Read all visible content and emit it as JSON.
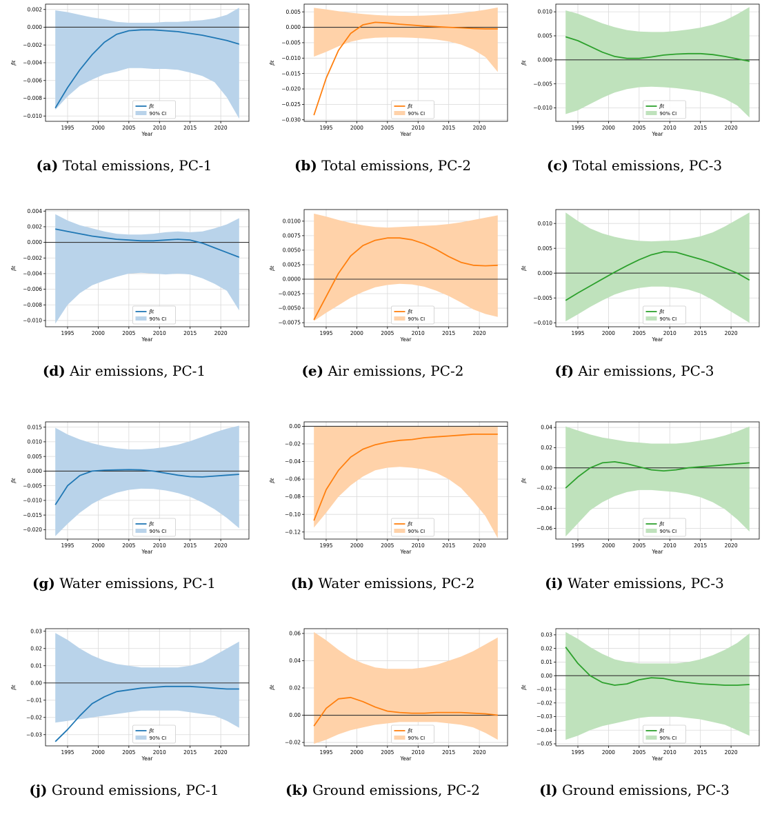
{
  "colors": {
    "blue": "#1f77b4",
    "blue_fill": "#b9d3ea",
    "orange": "#ff7f0e",
    "orange_fill": "#ffd2a9",
    "green": "#2ca02c",
    "green_fill": "#bfe2bc",
    "zero_line": "#333333",
    "grid": "#d9d9d9"
  },
  "shared": {
    "xlabel": "Year",
    "ylabel": "β̂t",
    "legend_line": "β̂t",
    "legend_fill": "90% CI",
    "legend_position": "lower-center",
    "xticks": [
      1995,
      2000,
      2005,
      2010,
      2015,
      2020
    ],
    "xlim": [
      1991.4,
      2024.6
    ],
    "grid": true
  },
  "chart_data": [
    {
      "id": "a",
      "type": "line",
      "color": "blue",
      "caption_letter": "(a)",
      "caption_text": "Total emissions, PC-1",
      "ylim": [
        -0.0106,
        0.0026
      ],
      "yticks": [
        0.002,
        0.0,
        -0.002,
        -0.004,
        -0.006,
        -0.008,
        -0.01
      ],
      "ytick_labels": [
        "0.002",
        "0.000",
        "−0.002",
        "−0.004",
        "−0.006",
        "−0.008",
        "−0.010"
      ],
      "x": [
        1993,
        1995,
        1997,
        1999,
        2001,
        2003,
        2005,
        2007,
        2009,
        2011,
        2013,
        2015,
        2017,
        2019,
        2021,
        2023
      ],
      "y": [
        -0.0091,
        -0.0068,
        -0.0048,
        -0.0031,
        -0.0017,
        -0.0008,
        -0.0004,
        -0.0003,
        -0.0003,
        -0.0004,
        -0.0005,
        -0.0007,
        -0.0009,
        -0.0012,
        -0.0015,
        -0.0019
      ],
      "upper": [
        0.0019,
        0.0017,
        0.0014,
        0.0011,
        0.0009,
        0.0006,
        0.0005,
        0.0005,
        0.0005,
        0.0006,
        0.0006,
        0.0007,
        0.0008,
        0.001,
        0.0014,
        0.0022
      ],
      "lower": [
        -0.0093,
        -0.0078,
        -0.0066,
        -0.0059,
        -0.0053,
        -0.005,
        -0.0046,
        -0.0046,
        -0.0047,
        -0.0047,
        -0.0048,
        -0.0051,
        -0.0055,
        -0.0062,
        -0.0079,
        -0.0103
      ]
    },
    {
      "id": "b",
      "type": "line",
      "color": "orange",
      "caption_letter": "(b)",
      "caption_text": "Total emissions, PC-2",
      "ylim": [
        -0.0305,
        0.0075
      ],
      "yticks": [
        0.005,
        0.0,
        -0.005,
        -0.01,
        -0.015,
        -0.02,
        -0.025,
        -0.03
      ],
      "ytick_labels": [
        "0.005",
        "0.000",
        "−0.005",
        "−0.010",
        "−0.015",
        "−0.020",
        "−0.025",
        "−0.030"
      ],
      "x": [
        1993,
        1995,
        1997,
        1999,
        2001,
        2003,
        2005,
        2007,
        2009,
        2011,
        2013,
        2015,
        2017,
        2019,
        2021,
        2023
      ],
      "y": [
        -0.0285,
        -0.0165,
        -0.0075,
        -0.002,
        0.0008,
        0.0016,
        0.0014,
        0.001,
        0.0007,
        0.0004,
        0.0002,
        0.0,
        -0.0002,
        -0.0004,
        -0.0005,
        -0.0005
      ],
      "upper": [
        0.0063,
        0.0058,
        0.0052,
        0.0047,
        0.0043,
        0.004,
        0.0038,
        0.0037,
        0.0037,
        0.0038,
        0.004,
        0.0042,
        0.0046,
        0.0051,
        0.0057,
        0.0064
      ],
      "lower": [
        -0.0095,
        -0.008,
        -0.0062,
        -0.0047,
        -0.0038,
        -0.0034,
        -0.0033,
        -0.0033,
        -0.0034,
        -0.0036,
        -0.004,
        -0.0046,
        -0.0056,
        -0.0072,
        -0.0097,
        -0.0145
      ]
    },
    {
      "id": "c",
      "type": "line",
      "color": "green",
      "caption_letter": "(c)",
      "caption_text": "Total emissions, PC-3",
      "ylim": [
        -0.0128,
        0.0116
      ],
      "yticks": [
        0.01,
        0.005,
        0.0,
        -0.005,
        -0.01
      ],
      "ytick_labels": [
        "0.010",
        "0.005",
        "0.000",
        "−0.005",
        "−0.010"
      ],
      "x": [
        1993,
        1995,
        1997,
        1999,
        2001,
        2003,
        2005,
        2007,
        2009,
        2011,
        2013,
        2015,
        2017,
        2019,
        2021,
        2023
      ],
      "y": [
        0.0048,
        0.004,
        0.0028,
        0.0016,
        0.0007,
        0.0003,
        0.0003,
        0.0006,
        0.001,
        0.0012,
        0.0013,
        0.0013,
        0.0011,
        0.0007,
        0.0002,
        -0.0003
      ],
      "upper": [
        0.0103,
        0.0096,
        0.0086,
        0.0076,
        0.0068,
        0.0062,
        0.0059,
        0.0058,
        0.0058,
        0.006,
        0.0063,
        0.0067,
        0.0073,
        0.0082,
        0.0095,
        0.011
      ],
      "lower": [
        -0.0113,
        -0.0105,
        -0.0092,
        -0.0079,
        -0.0068,
        -0.0061,
        -0.0057,
        -0.0056,
        -0.0057,
        -0.0059,
        -0.0062,
        -0.0066,
        -0.0072,
        -0.0081,
        -0.0095,
        -0.012
      ]
    },
    {
      "id": "d",
      "type": "line",
      "color": "blue",
      "caption_letter": "(d)",
      "caption_text": "Air emissions, PC-1",
      "ylim": [
        -0.0108,
        0.0042
      ],
      "yticks": [
        0.004,
        0.002,
        0.0,
        -0.002,
        -0.004,
        -0.006,
        -0.008,
        -0.01
      ],
      "ytick_labels": [
        "0.004",
        "0.002",
        "0.000",
        "−0.002",
        "−0.004",
        "−0.006",
        "−0.008",
        "−0.010"
      ],
      "x": [
        1993,
        1995,
        1997,
        1999,
        2001,
        2003,
        2005,
        2007,
        2009,
        2011,
        2013,
        2015,
        2017,
        2019,
        2021,
        2023
      ],
      "y": [
        0.0017,
        0.0014,
        0.0011,
        0.0008,
        0.0006,
        0.0004,
        0.0003,
        0.0002,
        0.0002,
        0.0003,
        0.0004,
        0.0003,
        -0.0001,
        -0.0007,
        -0.0013,
        -0.0019
      ],
      "upper": [
        0.0036,
        0.0028,
        0.0022,
        0.0018,
        0.0014,
        0.0011,
        0.001,
        0.001,
        0.0011,
        0.0013,
        0.0014,
        0.0013,
        0.0014,
        0.0018,
        0.0023,
        0.0031
      ],
      "lower": [
        -0.0104,
        -0.008,
        -0.0065,
        -0.0055,
        -0.0049,
        -0.0044,
        -0.004,
        -0.0039,
        -0.004,
        -0.0041,
        -0.004,
        -0.0041,
        -0.0046,
        -0.0053,
        -0.0062,
        -0.0087
      ]
    },
    {
      "id": "e",
      "type": "line",
      "color": "orange",
      "caption_letter": "(e)",
      "caption_text": "Air emissions, PC-2",
      "ylim": [
        -0.0082,
        0.012
      ],
      "yticks": [
        0.01,
        0.0075,
        0.005,
        0.0025,
        0.0,
        -0.0025,
        -0.005,
        -0.0075
      ],
      "ytick_labels": [
        "0.0100",
        "0.0075",
        "0.0050",
        "0.0025",
        "0.0000",
        "−0.0025",
        "−0.0050",
        "−0.0075"
      ],
      "x": [
        1993,
        1995,
        1997,
        1999,
        2001,
        2003,
        2005,
        2007,
        2009,
        2011,
        2013,
        2015,
        2017,
        2019,
        2021,
        2023
      ],
      "y": [
        -0.007,
        -0.003,
        0.001,
        0.004,
        0.0058,
        0.0067,
        0.0071,
        0.0071,
        0.0068,
        0.0061,
        0.0051,
        0.0039,
        0.0029,
        0.0024,
        0.0023,
        0.0024
      ],
      "upper": [
        0.0113,
        0.0108,
        0.0102,
        0.0097,
        0.0093,
        0.009,
        0.0089,
        0.009,
        0.0091,
        0.0092,
        0.0093,
        0.0095,
        0.0098,
        0.0102,
        0.0106,
        0.011
      ],
      "lower": [
        -0.0072,
        -0.0058,
        -0.0045,
        -0.0032,
        -0.0022,
        -0.0014,
        -0.001,
        -0.0008,
        -0.0009,
        -0.0013,
        -0.002,
        -0.0029,
        -0.004,
        -0.0052,
        -0.006,
        -0.0065
      ]
    },
    {
      "id": "f",
      "type": "line",
      "color": "green",
      "caption_letter": "(f)",
      "caption_text": "Air emissions, PC-3",
      "ylim": [
        -0.0108,
        0.0128
      ],
      "yticks": [
        0.01,
        0.005,
        0.0,
        -0.005,
        -0.01
      ],
      "ytick_labels": [
        "0.010",
        "0.005",
        "0.000",
        "−0.005",
        "−0.010"
      ],
      "x": [
        1993,
        1995,
        1997,
        1999,
        2001,
        2003,
        2005,
        2007,
        2009,
        2011,
        2013,
        2015,
        2017,
        2019,
        2021,
        2023
      ],
      "y": [
        -0.0055,
        -0.004,
        -0.0026,
        -0.0012,
        0.0002,
        0.0015,
        0.0027,
        0.0037,
        0.0043,
        0.0042,
        0.0035,
        0.0028,
        0.002,
        0.001,
        0.0,
        -0.0014
      ],
      "upper": [
        0.0122,
        0.0105,
        0.009,
        0.008,
        0.0073,
        0.0068,
        0.0065,
        0.0064,
        0.0065,
        0.0066,
        0.0069,
        0.0074,
        0.0082,
        0.0094,
        0.0108,
        0.0122
      ],
      "lower": [
        -0.0097,
        -0.0083,
        -0.0068,
        -0.0055,
        -0.0043,
        -0.0035,
        -0.003,
        -0.0027,
        -0.0027,
        -0.0029,
        -0.0033,
        -0.0041,
        -0.0054,
        -0.007,
        -0.0085,
        -0.01
      ]
    },
    {
      "id": "g",
      "type": "line",
      "color": "blue",
      "caption_letter": "(g)",
      "caption_text": "Water emissions, PC-1",
      "ylim": [
        -0.0232,
        0.0168
      ],
      "yticks": [
        0.015,
        0.01,
        0.005,
        0.0,
        -0.005,
        -0.01,
        -0.015,
        -0.02
      ],
      "ytick_labels": [
        "0.015",
        "0.010",
        "0.005",
        "0.000",
        "−0.005",
        "−0.010",
        "−0.015",
        "−0.020"
      ],
      "x": [
        1993,
        1995,
        1997,
        1999,
        2001,
        2003,
        2005,
        2007,
        2009,
        2011,
        2013,
        2015,
        2017,
        2019,
        2021,
        2023
      ],
      "y": [
        -0.0115,
        -0.005,
        -0.0015,
        0.0,
        0.0003,
        0.0004,
        0.0005,
        0.0004,
        0.0,
        -0.0007,
        -0.0014,
        -0.0019,
        -0.002,
        -0.0017,
        -0.0014,
        -0.0011
      ],
      "upper": [
        0.0148,
        0.0125,
        0.0108,
        0.0095,
        0.0085,
        0.0078,
        0.0074,
        0.0074,
        0.0077,
        0.0082,
        0.009,
        0.0102,
        0.0117,
        0.0132,
        0.0145,
        0.0155
      ],
      "lower": [
        -0.0222,
        -0.018,
        -0.0142,
        -0.0112,
        -0.009,
        -0.0074,
        -0.0064,
        -0.006,
        -0.0061,
        -0.0066,
        -0.0075,
        -0.0088,
        -0.0107,
        -0.013,
        -0.016,
        -0.0195
      ]
    },
    {
      "id": "h",
      "type": "line",
      "color": "orange",
      "caption_letter": "(h)",
      "caption_text": "Water emissions, PC-2",
      "ylim": [
        -0.128,
        0.005
      ],
      "yticks": [
        0.0,
        -0.02,
        -0.04,
        -0.06,
        -0.08,
        -0.1,
        -0.12
      ],
      "ytick_labels": [
        "0.00",
        "−0.02",
        "−0.04",
        "−0.06",
        "−0.08",
        "−0.10",
        "−0.12"
      ],
      "x": [
        1993,
        1995,
        1997,
        1999,
        2001,
        2003,
        2005,
        2007,
        2009,
        2011,
        2013,
        2015,
        2017,
        2019,
        2021,
        2023
      ],
      "y": [
        -0.107,
        -0.072,
        -0.05,
        -0.035,
        -0.026,
        -0.021,
        -0.018,
        -0.016,
        -0.015,
        -0.013,
        -0.012,
        -0.011,
        -0.01,
        -0.009,
        -0.009,
        -0.009
      ],
      "upper": [
        0.0,
        0.0,
        0.0,
        0.0,
        0.0,
        0.0,
        0.0,
        0.0,
        0.0,
        0.0,
        0.0,
        0.0,
        0.0,
        0.0,
        0.0,
        0.0
      ],
      "lower": [
        -0.115,
        -0.098,
        -0.08,
        -0.067,
        -0.057,
        -0.05,
        -0.047,
        -0.046,
        -0.047,
        -0.049,
        -0.053,
        -0.06,
        -0.07,
        -0.085,
        -0.102,
        -0.127
      ]
    },
    {
      "id": "i",
      "type": "line",
      "color": "green",
      "caption_letter": "(i)",
      "caption_text": "Water emissions, PC-3",
      "ylim": [
        -0.0705,
        0.0455
      ],
      "yticks": [
        0.04,
        0.02,
        0.0,
        -0.02,
        -0.04,
        -0.06
      ],
      "ytick_labels": [
        "0.04",
        "0.02",
        "0.00",
        "−0.02",
        "−0.04",
        "−0.06"
      ],
      "x": [
        1993,
        1995,
        1997,
        1999,
        2001,
        2003,
        2005,
        2007,
        2009,
        2011,
        2013,
        2015,
        2017,
        2019,
        2021,
        2023
      ],
      "y": [
        -0.02,
        -0.009,
        0.0,
        0.005,
        0.006,
        0.004,
        0.001,
        -0.002,
        -0.003,
        -0.002,
        0.0,
        0.001,
        0.002,
        0.003,
        0.004,
        0.005
      ],
      "upper": [
        0.041,
        0.037,
        0.033,
        0.03,
        0.028,
        0.026,
        0.025,
        0.024,
        0.024,
        0.024,
        0.025,
        0.027,
        0.029,
        0.032,
        0.036,
        0.041
      ],
      "lower": [
        -0.068,
        -0.055,
        -0.042,
        -0.034,
        -0.028,
        -0.024,
        -0.022,
        -0.022,
        -0.023,
        -0.024,
        -0.026,
        -0.029,
        -0.034,
        -0.041,
        -0.051,
        -0.063
      ]
    },
    {
      "id": "j",
      "type": "line",
      "color": "blue",
      "caption_letter": "(j)",
      "caption_text": "Ground emissions, PC-1",
      "ylim": [
        -0.0365,
        0.0315
      ],
      "yticks": [
        0.03,
        0.02,
        0.01,
        0.0,
        -0.01,
        -0.02,
        -0.03
      ],
      "ytick_labels": [
        "0.03",
        "0.02",
        "0.01",
        "0.00",
        "−0.01",
        "−0.02",
        "−0.03"
      ],
      "x": [
        1993,
        1995,
        1997,
        1999,
        2001,
        2003,
        2005,
        2007,
        2009,
        2011,
        2013,
        2015,
        2017,
        2019,
        2021,
        2023
      ],
      "y": [
        -0.034,
        -0.027,
        -0.019,
        -0.012,
        -0.008,
        -0.005,
        -0.004,
        -0.003,
        -0.0025,
        -0.002,
        -0.002,
        -0.002,
        -0.0025,
        -0.003,
        -0.0035,
        -0.0035
      ],
      "upper": [
        0.029,
        0.025,
        0.02,
        0.016,
        0.013,
        0.011,
        0.01,
        0.009,
        0.009,
        0.009,
        0.009,
        0.01,
        0.012,
        0.016,
        0.02,
        0.024
      ],
      "lower": [
        -0.023,
        -0.022,
        -0.021,
        -0.02,
        -0.019,
        -0.018,
        -0.017,
        -0.016,
        -0.016,
        -0.016,
        -0.016,
        -0.017,
        -0.018,
        -0.019,
        -0.022,
        -0.026
      ]
    },
    {
      "id": "k",
      "type": "line",
      "color": "orange",
      "caption_letter": "(k)",
      "caption_text": "Ground emissions, PC-2",
      "ylim": [
        -0.0225,
        0.0635
      ],
      "yticks": [
        0.06,
        0.04,
        0.02,
        0.0,
        -0.02
      ],
      "ytick_labels": [
        "0.06",
        "0.04",
        "0.02",
        "0.00",
        "−0.02"
      ],
      "x": [
        1993,
        1995,
        1997,
        1999,
        2001,
        2003,
        2005,
        2007,
        2009,
        2011,
        2013,
        2015,
        2017,
        2019,
        2021,
        2023
      ],
      "y": [
        -0.008,
        0.005,
        0.012,
        0.013,
        0.01,
        0.006,
        0.003,
        0.002,
        0.0015,
        0.0015,
        0.002,
        0.002,
        0.002,
        0.0015,
        0.001,
        0.0
      ],
      "upper": [
        0.061,
        0.055,
        0.048,
        0.042,
        0.038,
        0.035,
        0.034,
        0.034,
        0.034,
        0.035,
        0.037,
        0.04,
        0.043,
        0.047,
        0.052,
        0.057
      ],
      "lower": [
        -0.021,
        -0.018,
        -0.014,
        -0.011,
        -0.009,
        -0.007,
        -0.006,
        -0.005,
        -0.005,
        -0.005,
        -0.005,
        -0.006,
        -0.007,
        -0.009,
        -0.013,
        -0.018
      ]
    },
    {
      "id": "l",
      "type": "line",
      "color": "green",
      "caption_letter": "(l)",
      "caption_text": "Ground emissions, PC-3",
      "ylim": [
        -0.0515,
        0.0345
      ],
      "yticks": [
        0.03,
        0.02,
        0.01,
        0.0,
        -0.01,
        -0.02,
        -0.03,
        -0.04,
        -0.05
      ],
      "ytick_labels": [
        "0.03",
        "0.02",
        "0.01",
        "0.00",
        "−0.01",
        "−0.02",
        "−0.03",
        "−0.04",
        "−0.05"
      ],
      "x": [
        1993,
        1995,
        1997,
        1999,
        2001,
        2003,
        2005,
        2007,
        2009,
        2011,
        2013,
        2015,
        2017,
        2019,
        2021,
        2023
      ],
      "y": [
        0.021,
        0.009,
        0.0,
        -0.005,
        -0.007,
        -0.006,
        -0.003,
        -0.0015,
        -0.002,
        -0.004,
        -0.005,
        -0.006,
        -0.0065,
        -0.007,
        -0.007,
        -0.0065
      ],
      "upper": [
        0.032,
        0.027,
        0.021,
        0.016,
        0.012,
        0.01,
        0.009,
        0.009,
        0.009,
        0.009,
        0.01,
        0.012,
        0.015,
        0.019,
        0.024,
        0.031
      ],
      "lower": [
        -0.047,
        -0.044,
        -0.04,
        -0.037,
        -0.035,
        -0.033,
        -0.031,
        -0.03,
        -0.03,
        -0.03,
        -0.031,
        -0.032,
        -0.034,
        -0.036,
        -0.04,
        -0.044
      ]
    }
  ]
}
